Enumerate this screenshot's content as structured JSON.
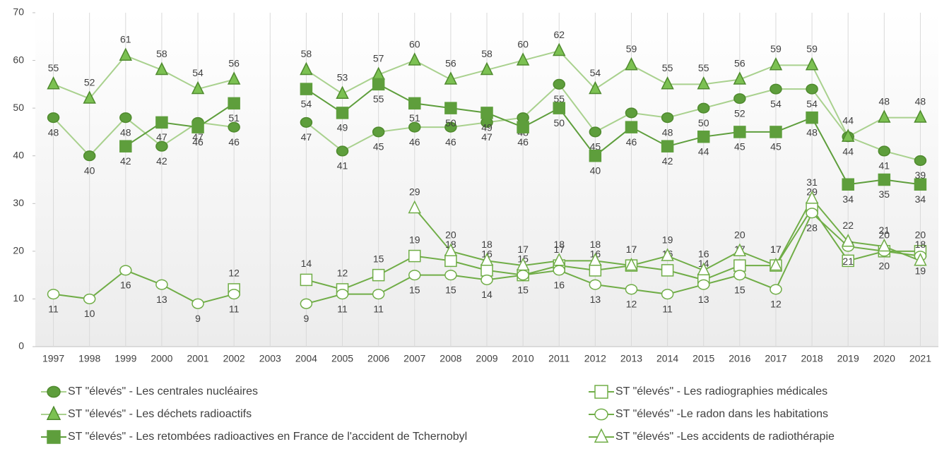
{
  "chart_data": {
    "type": "line",
    "categories": [
      "1997",
      "1998",
      "1999",
      "2000",
      "2001",
      "2002",
      "2003",
      "2004",
      "2005",
      "2006",
      "2007",
      "2008",
      "2009",
      "2010",
      "2011",
      "2012",
      "2013",
      "2014",
      "2015",
      "2016",
      "2017",
      "2018",
      "2019",
      "2020",
      "2021"
    ],
    "ylim": [
      0,
      70
    ],
    "yticks": [
      0,
      10,
      20,
      30,
      40,
      50,
      60,
      70
    ],
    "grid": true,
    "series": [
      {
        "name": "ST \"élevés\" - Les centrales nucléaires",
        "color": "#a9d18e",
        "marker": "circle",
        "marker_fill": "#5e9e3c",
        "values": [
          48,
          40,
          48,
          42,
          47,
          46,
          null,
          47,
          41,
          45,
          46,
          46,
          47,
          48,
          55,
          45,
          49,
          48,
          50,
          52,
          54,
          54,
          44,
          41,
          39
        ]
      },
      {
        "name": "ST \"élevés\" - Les déchets radioactifs",
        "color": "#a9d18e",
        "marker": "triangle",
        "marker_fill": "#7cc152",
        "values": [
          55,
          52,
          61,
          58,
          54,
          56,
          null,
          58,
          53,
          57,
          60,
          56,
          58,
          60,
          62,
          54,
          59,
          55,
          55,
          56,
          59,
          59,
          44,
          48,
          48
        ]
      },
      {
        "name": "ST \"élevés\" - Les retombées radioactives en France de l'accident de Tchernobyl",
        "color": "#5e9e3c",
        "marker": "square",
        "marker_fill": "#5e9e3c",
        "values": [
          null,
          null,
          42,
          47,
          46,
          51,
          null,
          54,
          49,
          55,
          51,
          50,
          49,
          46,
          50,
          40,
          46,
          42,
          44,
          45,
          45,
          48,
          34,
          35,
          34
        ]
      },
      {
        "name": "ST \"élevés\" - Les radiographies médicales",
        "color": "#70ad47",
        "marker": "square",
        "marker_fill": "#ffffff",
        "values": [
          null,
          null,
          null,
          null,
          null,
          12,
          null,
          14,
          12,
          15,
          19,
          18,
          16,
          15,
          17,
          16,
          17,
          16,
          14,
          17,
          17,
          29,
          18,
          20,
          20
        ]
      },
      {
        "name": "ST \"élevés\" -Le radon dans les habitations",
        "color": "#70ad47",
        "marker": "circle",
        "marker_fill": "#ffffff",
        "values": [
          11,
          10,
          16,
          13,
          9,
          11,
          null,
          9,
          11,
          11,
          15,
          15,
          14,
          15,
          16,
          13,
          12,
          11,
          13,
          15,
          12,
          28,
          21,
          20,
          19
        ]
      },
      {
        "name": "ST \"élevés\" -Les accidents de radiothérapie",
        "color": "#70ad47",
        "marker": "triangle",
        "marker_fill": "#ffffff",
        "values": [
          null,
          null,
          null,
          null,
          null,
          null,
          null,
          null,
          null,
          null,
          29,
          20,
          18,
          17,
          18,
          18,
          17,
          19,
          16,
          20,
          17,
          31,
          22,
          21,
          18
        ]
      }
    ]
  }
}
